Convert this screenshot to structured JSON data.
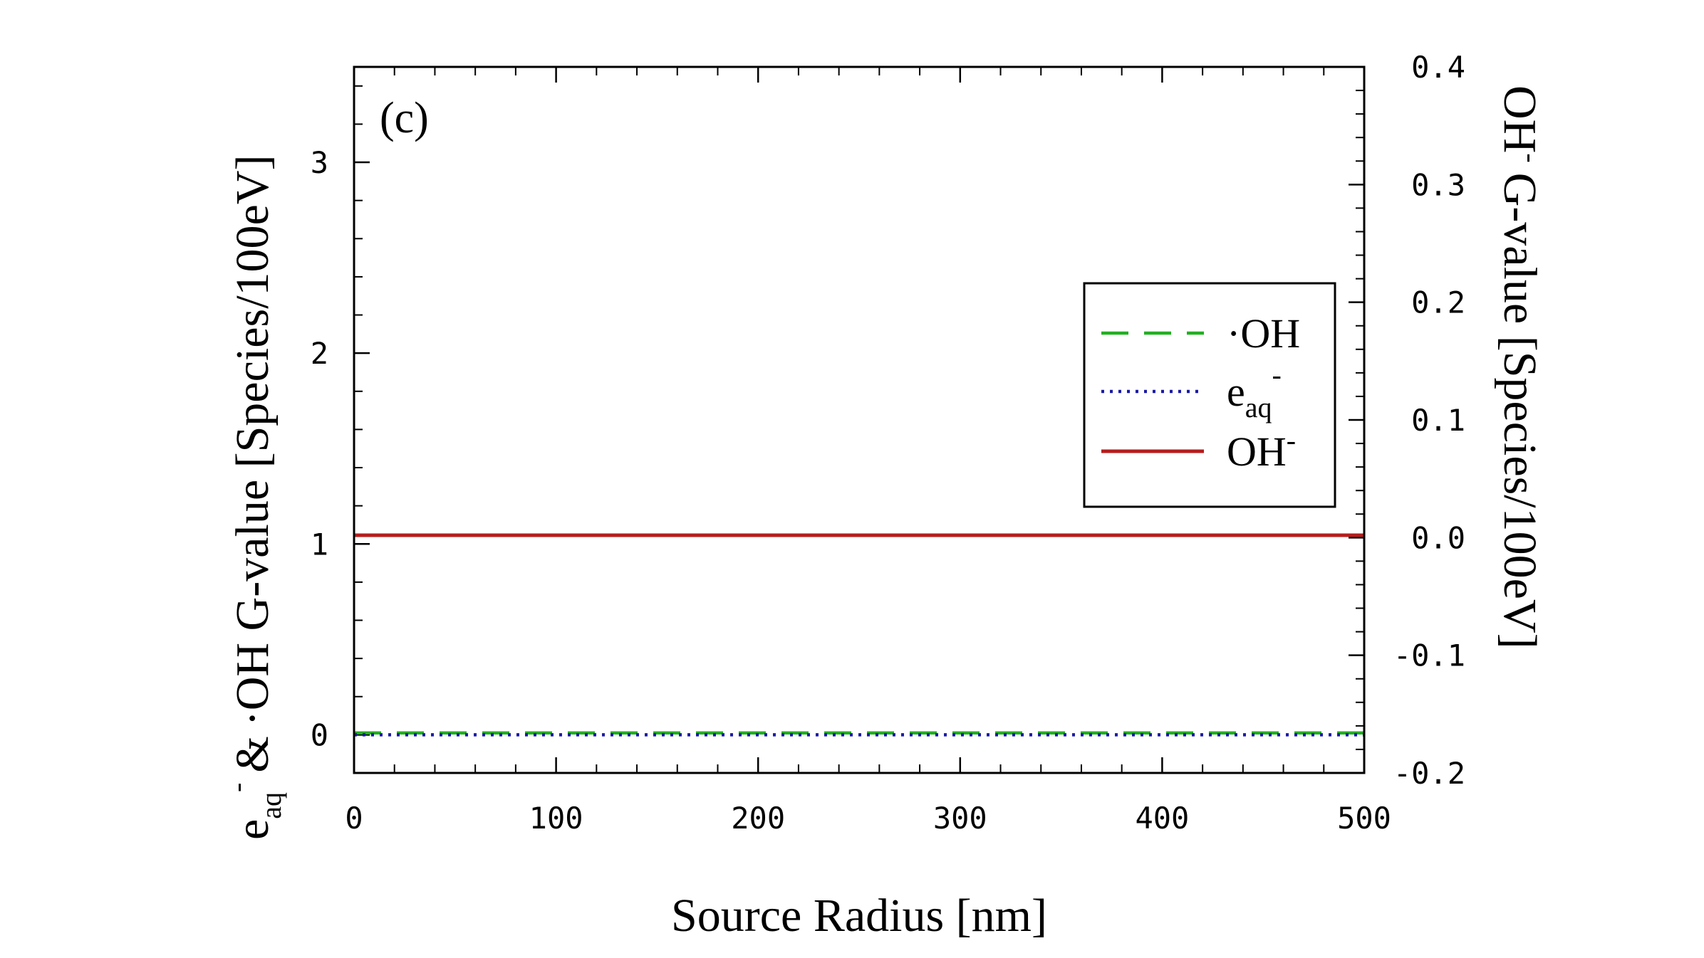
{
  "chart_data": {
    "type": "line",
    "panel_label": "(c)",
    "xlabel": "Source Radius [nm]",
    "ylabel_left": {
      "e_base": "e",
      "e_sub": "aq",
      "e_sup": "-",
      "amp": "&",
      "oh_dot": "·",
      "rest": "OH G-value [Species/100eV]"
    },
    "ylabel_right": {
      "oh_base": "OH",
      "oh_sup": "-",
      "rest": "G-value [Species/100eV]"
    },
    "xlim": [
      0,
      500
    ],
    "ylim_left": [
      -0.2,
      3.5
    ],
    "ylim_right": [
      -0.2,
      0.4
    ],
    "x_ticks": [
      "0",
      "100",
      "200",
      "300",
      "400",
      "500"
    ],
    "y_left_ticks": [
      "0",
      "1",
      "2",
      "3"
    ],
    "y_right_ticks": [
      "-0.2",
      "-0.1",
      "0.0",
      "0.1",
      "0.2",
      "0.3",
      "0.4"
    ],
    "x": [
      0,
      50,
      100,
      150,
      200,
      250,
      300,
      350,
      400,
      450,
      500
    ],
    "series": [
      {
        "name": "·OH",
        "axis": "left",
        "style": "dashed",
        "color": "#22b022",
        "values": [
          0.01,
          0.01,
          0.01,
          0.01,
          0.01,
          0.01,
          0.01,
          0.01,
          0.01,
          0.01,
          0.01
        ]
      },
      {
        "name": "eaq-",
        "axis": "left",
        "style": "dotted",
        "color": "#1a1aa6",
        "values": [
          0.0,
          0.0,
          0.0,
          0.0,
          0.0,
          0.0,
          0.0,
          0.0,
          0.0,
          0.0,
          0.0
        ]
      },
      {
        "name": "OH-",
        "axis": "right",
        "style": "solid",
        "color": "#b51c1c",
        "values": [
          0.002,
          0.002,
          0.002,
          0.002,
          0.002,
          0.002,
          0.002,
          0.002,
          0.002,
          0.002,
          0.002
        ]
      }
    ],
    "legend": {
      "placement": "center-right",
      "entries": [
        {
          "base": "·OH",
          "sub": "",
          "sup": ""
        },
        {
          "base": "e",
          "sub": "aq",
          "sup": "-"
        },
        {
          "base": "OH",
          "sub": "",
          "sup": "-"
        }
      ]
    },
    "grid": false
  }
}
